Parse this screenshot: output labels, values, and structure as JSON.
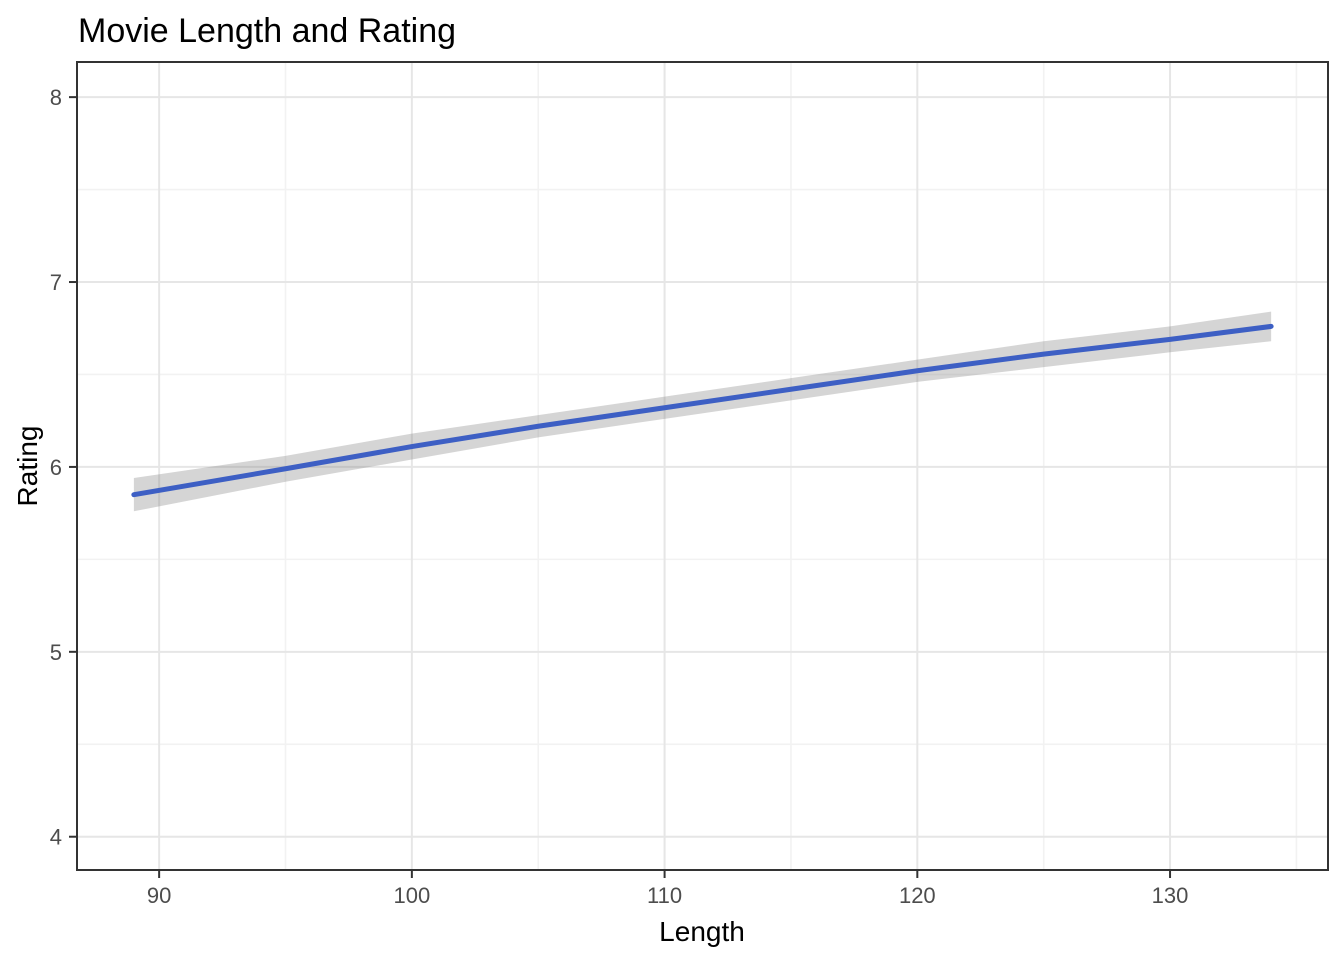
{
  "chart_data": {
    "type": "line",
    "title": "Movie Length and Rating",
    "xlabel": "Length",
    "ylabel": "Rating",
    "xlim": [
      86.75,
      136.25
    ],
    "ylim": [
      3.82,
      8.19
    ],
    "grid": true,
    "legend": false,
    "x_ticks": [
      90,
      100,
      110,
      120,
      130
    ],
    "x_tick_labels": [
      "90",
      "100",
      "110",
      "120",
      "130"
    ],
    "x_minor_ticks": [
      95,
      105,
      115,
      125,
      135
    ],
    "y_ticks": [
      4,
      5,
      6,
      7,
      8
    ],
    "y_tick_labels": [
      "4",
      "5",
      "6",
      "7",
      "8"
    ],
    "y_minor_ticks": [
      4.5,
      5.5,
      6.5,
      7.5
    ],
    "series": [
      {
        "name": "smooth-fit",
        "x": [
          89,
          95,
          100,
          105,
          110,
          115,
          120,
          125,
          130,
          134
        ],
        "y": [
          5.85,
          5.99,
          6.11,
          6.22,
          6.32,
          6.42,
          6.52,
          6.61,
          6.69,
          6.76
        ],
        "ci_upper": [
          5.94,
          6.06,
          6.18,
          6.28,
          6.38,
          6.48,
          6.58,
          6.68,
          6.76,
          6.84
        ],
        "ci_lower": [
          5.76,
          5.92,
          6.04,
          6.16,
          6.26,
          6.36,
          6.46,
          6.54,
          6.62,
          6.68
        ]
      }
    ],
    "colors": {
      "line": "#3D5FC4",
      "ribbon": "rgba(125,125,125,0.32)",
      "grid_major": "#E6E6E6",
      "grid_minor": "#F2F2F2",
      "panel_border": "#333333",
      "tick": "#333333",
      "tick_label": "#4D4D4D",
      "title": "#000000",
      "axis_label": "#000000",
      "panel_background": "#FFFFFF"
    }
  }
}
